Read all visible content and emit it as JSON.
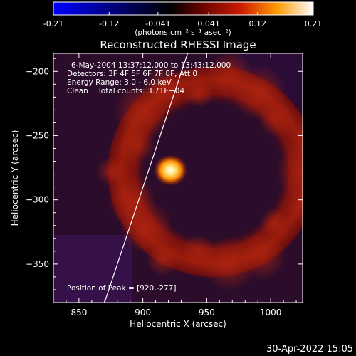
{
  "chart_data": {
    "type": "heatmap",
    "title": "Reconstructed RHESSI Image",
    "xlabel": "Heliocentric X (arcsec)",
    "ylabel": "Heliocentric Y (arcsec)",
    "xlim": [
      830,
      1025
    ],
    "ylim": [
      -380,
      -186
    ],
    "x_ticks": [
      850,
      900,
      950,
      1000
    ],
    "y_ticks": [
      -200,
      -250,
      -300,
      -350
    ],
    "colorbar": {
      "range": [
        -0.21,
        0.21
      ],
      "ticks": [
        -0.21,
        -0.12,
        -0.041,
        0.041,
        0.12,
        0.21
      ],
      "tick_labels": [
        "-0.21",
        "-0.12",
        "-0.041",
        "0.041",
        "0.12",
        "0.21"
      ],
      "units_label": "(photons cm⁻² s⁻¹ asec⁻²)",
      "colormap": "heat (blue-black-red-yellow-white)"
    },
    "annotations": {
      "time_range": "6-May-2004 13:37:12.000 to 13:43:12.000",
      "detectors": "Detectors: 3F 4F 5F 6F 7F 8F, Att 0",
      "energy": "Energy Range: 3.0 - 6.0 keV",
      "clean": "Clean    Total counts: 3.71E+04",
      "peak": "Position of Peak = [920,-277]"
    },
    "peak_position": [
      920,
      -277
    ],
    "ring": {
      "center": [
        955,
        -278
      ],
      "radius_arcsec": 75
    },
    "limb_line": [
      [
        870,
        -380
      ],
      [
        935,
        -186
      ]
    ],
    "timestamp": "30-Apr-2022 15:05"
  },
  "colors": {
    "background": "#000000",
    "cmap_low": "#0000ff",
    "cmap_mid": "#000000",
    "cmap_high": "#ffffff"
  }
}
